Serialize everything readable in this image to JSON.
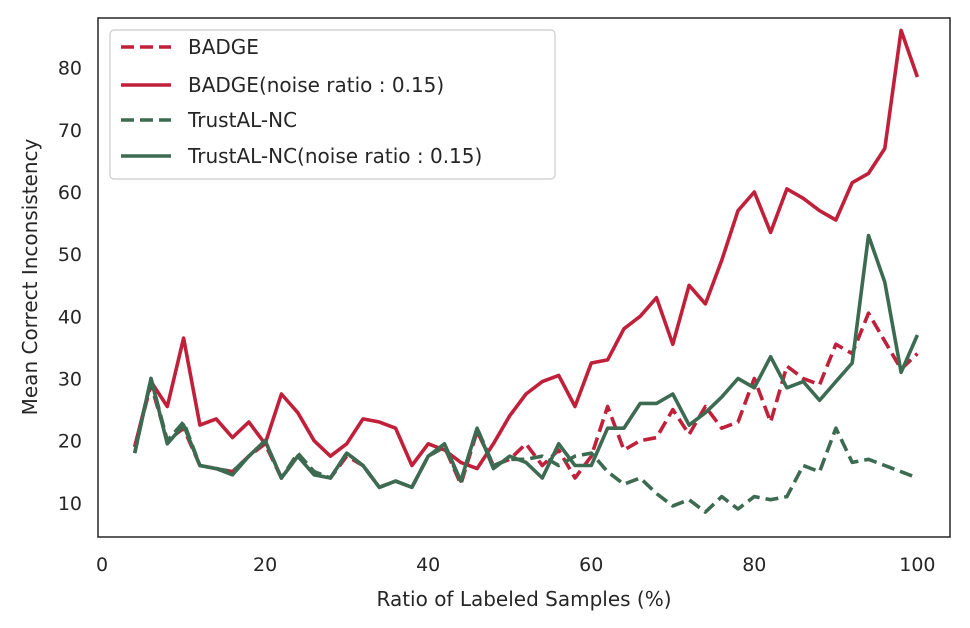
{
  "chart_data": {
    "type": "line",
    "title": "",
    "xlabel": "Ratio of Labeled Samples (%)",
    "ylabel": "Mean Correct Inconsistency",
    "xlim": [
      -0.5,
      104
    ],
    "ylim": [
      4.5,
      88
    ],
    "xticks": [
      0,
      20,
      40,
      60,
      80,
      100
    ],
    "yticks": [
      10,
      20,
      30,
      40,
      50,
      60,
      70,
      80
    ],
    "grid": false,
    "legend_position": "top-left",
    "series": [
      {
        "name": "BADGE",
        "color": "#c0203a",
        "style": "dashed",
        "x": [
          4,
          6,
          8,
          10,
          12,
          14,
          16,
          18,
          20,
          22,
          24,
          26,
          28,
          30,
          32,
          34,
          36,
          38,
          40,
          42,
          44,
          46,
          48,
          50,
          52,
          54,
          56,
          58,
          60,
          62,
          64,
          66,
          68,
          70,
          72,
          74,
          76,
          78,
          80,
          82,
          84,
          86,
          88,
          90,
          92,
          94,
          96,
          98,
          100
        ],
        "y": [
          19,
          29,
          20,
          22,
          16,
          15.5,
          15,
          17.5,
          19.5,
          14,
          17.5,
          15,
          14,
          17.5,
          16,
          12.5,
          13.5,
          12.5,
          17.5,
          19,
          13,
          21.5,
          16,
          17,
          19.5,
          16,
          18.5,
          14,
          17.5,
          25.5,
          18.5,
          20,
          20.5,
          25,
          21,
          25.5,
          22,
          23,
          30,
          23,
          32,
          30,
          29,
          35.5,
          34,
          40.5,
          36,
          31.5,
          34
        ]
      },
      {
        "name": "BADGE(noise ratio : 0.15)",
        "color": "#c0203a",
        "style": "solid",
        "x": [
          4,
          6,
          8,
          10,
          12,
          14,
          16,
          18,
          20,
          22,
          24,
          26,
          28,
          30,
          32,
          34,
          36,
          38,
          40,
          42,
          44,
          46,
          48,
          50,
          52,
          54,
          56,
          58,
          60,
          62,
          64,
          66,
          68,
          70,
          72,
          74,
          76,
          78,
          80,
          82,
          84,
          86,
          88,
          90,
          92,
          94,
          96,
          98,
          100
        ],
        "y": [
          19,
          29.5,
          25.5,
          36.5,
          22.5,
          23.5,
          20.5,
          23,
          19.5,
          27.5,
          24.5,
          20,
          17.5,
          19.5,
          23.5,
          23,
          22,
          16,
          19.5,
          18.5,
          16.5,
          15.5,
          19.5,
          24,
          27.5,
          29.5,
          30.5,
          25.5,
          32.5,
          33,
          38,
          40,
          43,
          35.5,
          45,
          42,
          49,
          57,
          60,
          53.5,
          60.5,
          59,
          57,
          55.5,
          61.5,
          63,
          67,
          86,
          78.5
        ]
      },
      {
        "name": "TrustAL-NC",
        "color": "#3d6b52",
        "style": "dashed",
        "x": [
          4,
          6,
          8,
          10,
          12,
          14,
          16,
          18,
          20,
          22,
          24,
          26,
          28,
          30,
          32,
          34,
          36,
          38,
          40,
          42,
          44,
          46,
          48,
          50,
          52,
          54,
          56,
          58,
          60,
          62,
          64,
          66,
          68,
          70,
          72,
          74,
          76,
          78,
          80,
          82,
          84,
          86,
          88,
          90,
          92,
          94,
          96,
          98,
          100
        ],
        "y": [
          18,
          30,
          20,
          23,
          16,
          15.5,
          15,
          17.5,
          20,
          14,
          18,
          15,
          14,
          18,
          16,
          12.5,
          13.5,
          12.5,
          17.5,
          19,
          13.5,
          22,
          16,
          17,
          17,
          17.5,
          16,
          17.5,
          18,
          15,
          13,
          14,
          11.5,
          9.5,
          10.5,
          8.5,
          11,
          9,
          11,
          10.5,
          11,
          16,
          15,
          22,
          16.5,
          17,
          16,
          15,
          14
        ]
      },
      {
        "name": "TrustAL-NC(noise ratio : 0.15)",
        "color": "#3d6b52",
        "style": "solid",
        "x": [
          4,
          6,
          8,
          10,
          12,
          14,
          16,
          18,
          20,
          22,
          24,
          26,
          28,
          30,
          32,
          34,
          36,
          38,
          40,
          42,
          44,
          46,
          48,
          50,
          52,
          54,
          56,
          58,
          60,
          62,
          64,
          66,
          68,
          70,
          72,
          74,
          76,
          78,
          80,
          82,
          84,
          86,
          88,
          90,
          92,
          94,
          96,
          98,
          100
        ],
        "y": [
          18,
          30,
          19.5,
          22.5,
          16,
          15.5,
          14.5,
          17.5,
          20,
          14,
          17.5,
          14.5,
          14,
          18,
          16,
          12.5,
          13.5,
          12.5,
          17.5,
          19.5,
          13.5,
          22,
          15.5,
          17.5,
          16.5,
          14,
          19.5,
          16,
          16,
          22,
          22,
          26,
          26,
          27.5,
          22.5,
          24.5,
          27,
          30,
          28.5,
          33.5,
          28.5,
          29.5,
          26.5,
          29.5,
          32.5,
          53,
          45.5,
          31,
          37
        ]
      }
    ]
  }
}
